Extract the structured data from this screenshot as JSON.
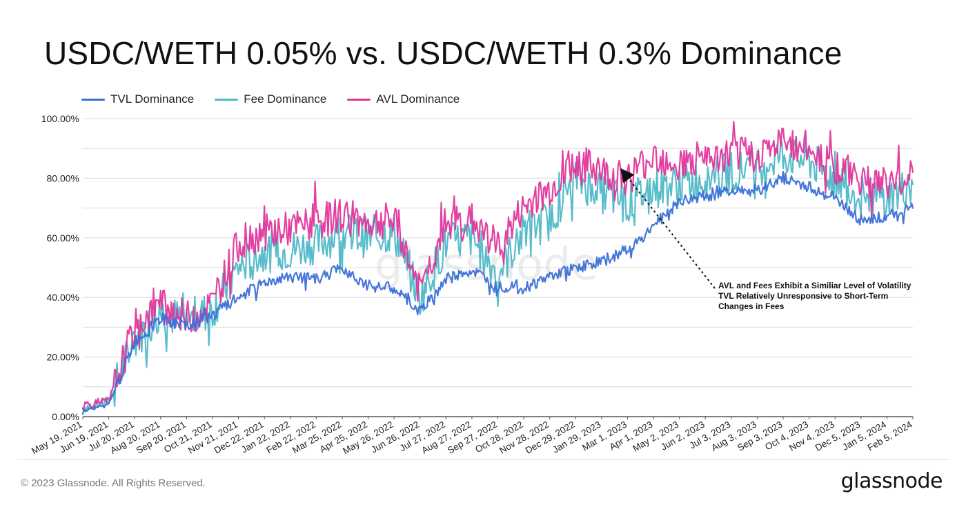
{
  "footer": {
    "copyright": "© 2023 Glassnode. All Rights Reserved.",
    "logo_text": "glassnode"
  },
  "watermark": "glassnode",
  "chart_data": {
    "type": "line",
    "title": "USDC/WETH 0.05% vs. USDC/WETH 0.3% Dominance",
    "xlabel": "",
    "ylabel": "",
    "ylim": [
      0,
      100
    ],
    "y_ticks": [
      "0.00%",
      "20.00%",
      "40.00%",
      "60.00%",
      "80.00%",
      "100.00%"
    ],
    "grid": true,
    "legend_position": "top-left",
    "x_ticks": [
      "May 19, 2021",
      "Jun 19, 2021",
      "Jul 20, 2021",
      "Aug 20, 2021",
      "Sep 20, 2021",
      "Oct 21, 2021",
      "Nov 21, 2021",
      "Dec 22, 2021",
      "Jan 22, 2022",
      "Feb 22, 2022",
      "Mar 25, 2022",
      "Apr 25, 2022",
      "May 26, 2022",
      "Jun 26, 2022",
      "Jul 27, 2022",
      "Aug 27, 2022",
      "Sep 27, 2022",
      "Oct 28, 2022",
      "Nov 28, 2022",
      "Dec 29, 2022",
      "Jan 29, 2023",
      "Mar 1, 2023",
      "Apr 1, 2023",
      "May 2, 2023",
      "Jun 2, 2023",
      "Jul 3, 2023",
      "Aug 3, 2023",
      "Sep 3, 2023",
      "Oct 4, 2023",
      "Nov 4, 2023",
      "Dec 5, 2023",
      "Jan 5, 2024",
      "Feb 5, 2024"
    ],
    "x": [
      "2021-05-19",
      "2021-06-19",
      "2021-07-20",
      "2021-08-20",
      "2021-09-20",
      "2021-10-21",
      "2021-11-21",
      "2021-12-22",
      "2022-01-22",
      "2022-02-22",
      "2022-03-25",
      "2022-04-25",
      "2022-05-26",
      "2022-06-26",
      "2022-07-27",
      "2022-08-27",
      "2022-09-27",
      "2022-10-28",
      "2022-11-28",
      "2022-12-29",
      "2023-01-29",
      "2023-03-01",
      "2023-04-01",
      "2023-05-02",
      "2023-06-02",
      "2023-07-03",
      "2023-08-03",
      "2023-09-03",
      "2023-10-04",
      "2023-11-04",
      "2023-12-05",
      "2024-01-05",
      "2024-02-05"
    ],
    "series": [
      {
        "name": "TVL Dominance",
        "color": "#3a6fd8",
        "values": [
          2,
          4,
          25,
          33,
          30,
          34,
          40,
          45,
          47,
          46,
          50,
          44,
          43,
          35,
          46,
          49,
          44,
          43,
          47,
          50,
          52,
          56,
          64,
          72,
          74,
          76,
          76,
          80,
          77,
          73,
          66,
          67,
          70
        ]
      },
      {
        "name": "Fee Dominance",
        "color": "#4fb8c8",
        "values": [
          3,
          5,
          26,
          35,
          32,
          36,
          50,
          55,
          56,
          58,
          62,
          60,
          62,
          40,
          58,
          60,
          48,
          62,
          66,
          80,
          75,
          72,
          77,
          78,
          80,
          82,
          84,
          88,
          86,
          80,
          74,
          73,
          78
        ]
      },
      {
        "name": "AVL Dominance",
        "color": "#e0379c",
        "values": [
          4,
          5,
          30,
          38,
          33,
          38,
          58,
          62,
          63,
          65,
          68,
          65,
          66,
          42,
          65,
          66,
          57,
          70,
          76,
          86,
          82,
          80,
          88,
          85,
          85,
          88,
          88,
          92,
          90,
          84,
          80,
          78,
          82
        ]
      }
    ],
    "annotation": {
      "lines": [
        "AVL and Fees Exhibit a Similiar Level of Volatility",
        "TVL Relatively Unresponsive to Short-Term",
        "Changes in Fees"
      ]
    }
  }
}
